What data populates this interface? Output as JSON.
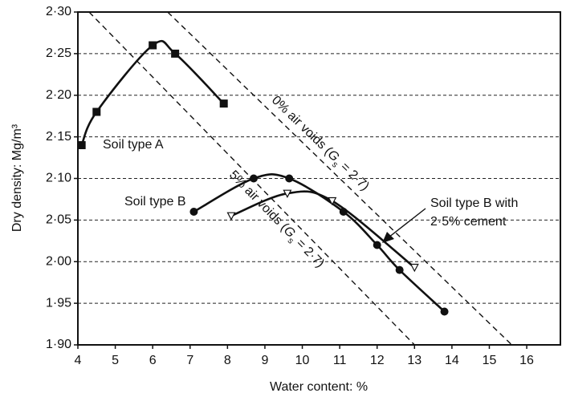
{
  "chart_data": {
    "type": "scatter",
    "x_label": "Water content: %",
    "y_label": "Dry density: Mg/m³",
    "xlim": [
      4,
      16.9
    ],
    "ylim": [
      1.9,
      2.3
    ],
    "xticks": [
      4,
      5,
      6,
      7,
      8,
      9,
      10,
      11,
      12,
      13,
      14,
      15,
      16
    ],
    "yticks": [
      {
        "value": 1.9,
        "label": "1·90"
      },
      {
        "value": 1.95,
        "label": "1·95"
      },
      {
        "value": 2.0,
        "label": "2·00"
      },
      {
        "value": 2.05,
        "label": "2·05"
      },
      {
        "value": 2.1,
        "label": "2·10"
      },
      {
        "value": 2.15,
        "label": "2·15"
      },
      {
        "value": 2.2,
        "label": "2·20"
      },
      {
        "value": 2.25,
        "label": "2·25"
      },
      {
        "value": 2.3,
        "label": "2·30"
      }
    ],
    "grid": true,
    "series": [
      {
        "name": "Soil type A",
        "marker": "square",
        "color": "#111111",
        "x": [
          4.1,
          4.5,
          6.0,
          6.6,
          7.9
        ],
        "values": [
          2.14,
          2.18,
          2.26,
          2.25,
          2.19
        ]
      },
      {
        "name": "Soil type B",
        "marker": "circle",
        "color": "#111111",
        "x": [
          7.1,
          8.7,
          9.65,
          11.1,
          12.0,
          12.6,
          13.8
        ],
        "values": [
          2.06,
          2.1,
          2.1,
          2.06,
          2.02,
          1.99,
          1.94
        ]
      },
      {
        "name": "Soil type B with 2·5% cement",
        "marker": "triangle",
        "color": "#111111",
        "x": [
          8.1,
          9.6,
          10.8,
          13.0
        ],
        "values": [
          2.055,
          2.082,
          2.073,
          1.993
        ]
      }
    ],
    "reference_lines": [
      {
        "label_parts": [
          "0% air voids (",
          "G",
          "s",
          " = 2·7)"
        ],
        "x": [
          6.4,
          15.6
        ],
        "values": [
          2.3,
          1.9
        ]
      },
      {
        "label_parts": [
          "5% air voids (",
          "G",
          "s",
          " = 2·7)"
        ],
        "x": [
          4.3,
          13.0
        ],
        "values": [
          2.3,
          1.9
        ]
      }
    ],
    "annotations": [
      "Soil type A",
      "Soil type B",
      "Soil type B with",
      "2·5% cement"
    ]
  }
}
